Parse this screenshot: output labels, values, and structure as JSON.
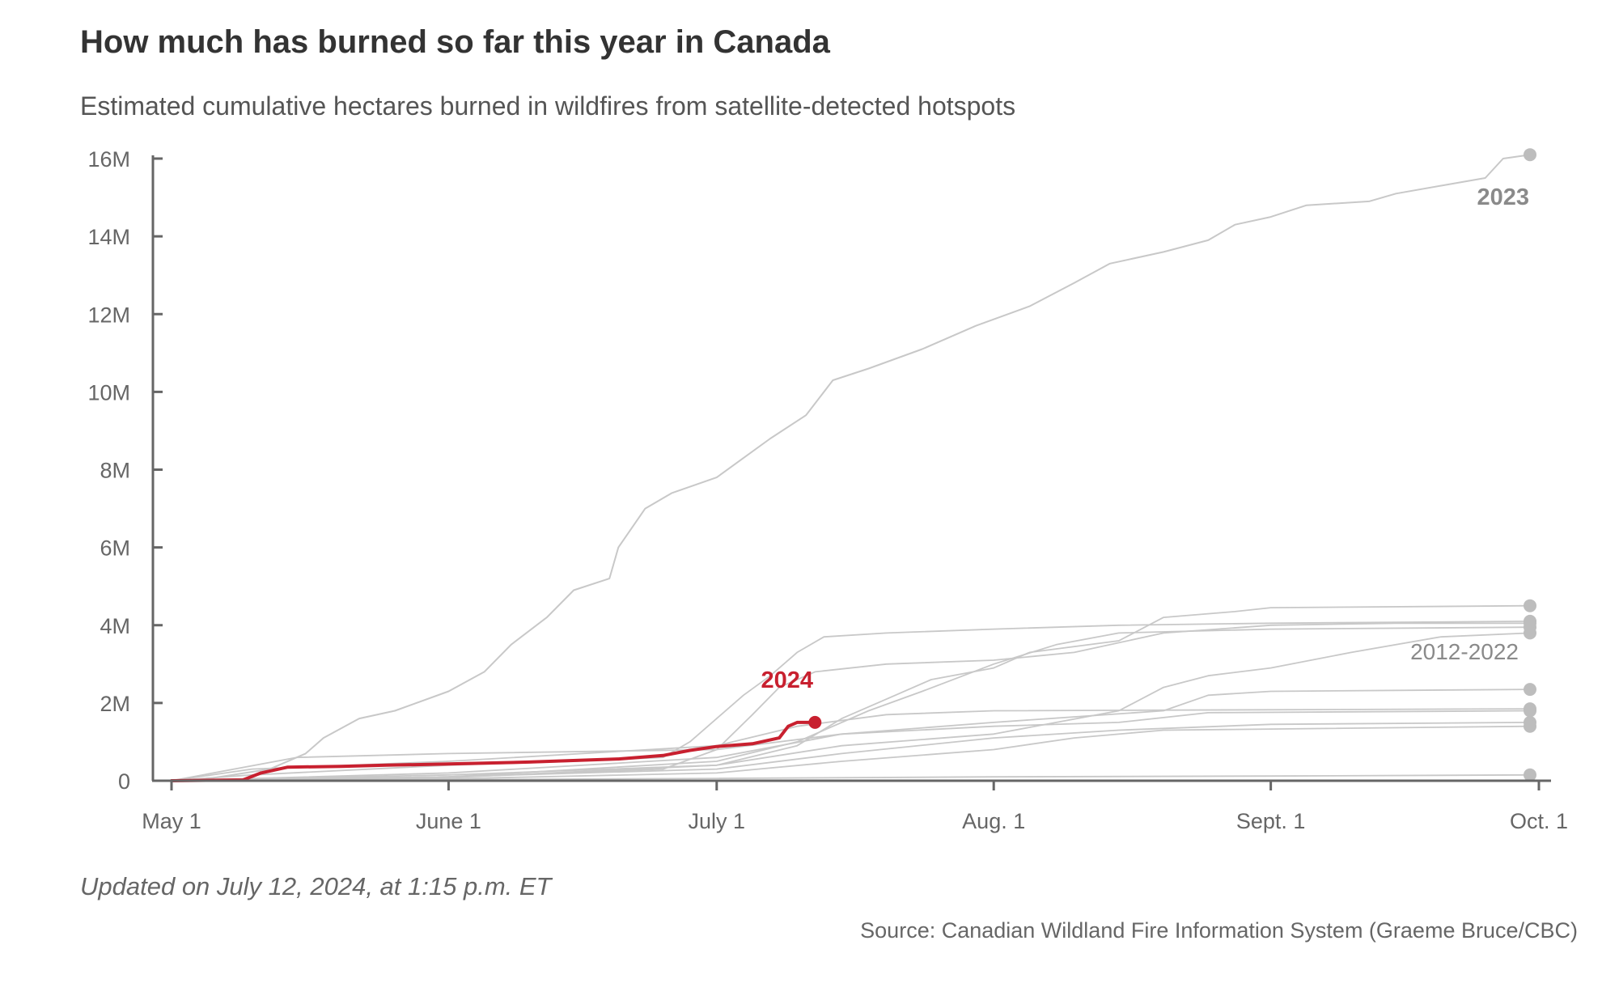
{
  "chart_data": {
    "type": "line",
    "title": "How much has burned so far this year in Canada",
    "subtitle": "Estimated cumulative hectares burned in wildfires from satellite-detected hotspots",
    "xlabel": "",
    "ylabel": "",
    "x_tick_labels": [
      "May 1",
      "June 1",
      "July 1",
      "Aug. 1",
      "Sept. 1",
      "Oct. 1"
    ],
    "y_ticks": [
      0,
      2000000,
      4000000,
      6000000,
      8000000,
      10000000,
      12000000,
      14000000,
      16000000
    ],
    "y_tick_labels": [
      "0",
      "2M",
      "4M",
      "6M",
      "8M",
      "10M",
      "12M",
      "14M",
      "16M"
    ],
    "xlim": [
      "May 1",
      "Oct. 1"
    ],
    "ylim": [
      0,
      16000000
    ],
    "grid": false,
    "annotations": {
      "current_year": "2024",
      "record_year": "2023",
      "historical_range": "2012-2022"
    },
    "colors": {
      "current": "#c8202f",
      "historical": "#c8c8c8",
      "endpoint": "#bdbdbd",
      "axis": "#666666"
    },
    "series": [
      {
        "name": "2024",
        "highlight": true,
        "points": [
          [
            "May 1",
            0
          ],
          [
            "May 9",
            20000
          ],
          [
            "May 11",
            200000
          ],
          [
            "May 14",
            350000
          ],
          [
            "May 20",
            370000
          ],
          [
            "May 25",
            400000
          ],
          [
            "June 1",
            430000
          ],
          [
            "June 10",
            480000
          ],
          [
            "June 20",
            560000
          ],
          [
            "June 25",
            650000
          ],
          [
            "June 28",
            780000
          ],
          [
            "July 1",
            880000
          ],
          [
            "July 5",
            950000
          ],
          [
            "July 8",
            1100000
          ],
          [
            "July 9",
            1400000
          ],
          [
            "July 10",
            1500000
          ],
          [
            "July 12",
            1500000
          ]
        ]
      },
      {
        "name": "2023",
        "points": [
          [
            "May 1",
            0
          ],
          [
            "May 5",
            50000
          ],
          [
            "May 12",
            300000
          ],
          [
            "May 16",
            700000
          ],
          [
            "May 18",
            1100000
          ],
          [
            "May 22",
            1600000
          ],
          [
            "May 26",
            1800000
          ],
          [
            "June 1",
            2300000
          ],
          [
            "June 5",
            2800000
          ],
          [
            "June 8",
            3500000
          ],
          [
            "June 12",
            4200000
          ],
          [
            "June 15",
            4900000
          ],
          [
            "June 19",
            5200000
          ],
          [
            "June 20",
            6000000
          ],
          [
            "June 23",
            7000000
          ],
          [
            "June 26",
            7400000
          ],
          [
            "July 1",
            7800000
          ],
          [
            "July 4",
            8300000
          ],
          [
            "July 7",
            8800000
          ],
          [
            "July 11",
            9400000
          ],
          [
            "July 14",
            10300000
          ],
          [
            "July 18",
            10600000
          ],
          [
            "July 24",
            11100000
          ],
          [
            "July 30",
            11700000
          ],
          [
            "Aug. 5",
            12200000
          ],
          [
            "Aug. 10",
            12800000
          ],
          [
            "Aug. 14",
            13300000
          ],
          [
            "Aug. 20",
            13600000
          ],
          [
            "Aug. 25",
            13900000
          ],
          [
            "Aug. 28",
            14300000
          ],
          [
            "Sept. 1",
            14500000
          ],
          [
            "Sept. 5",
            14800000
          ],
          [
            "Sept. 12",
            14900000
          ],
          [
            "Sept. 15",
            15100000
          ],
          [
            "Sept. 20",
            15300000
          ],
          [
            "Sept. 25",
            15500000
          ],
          [
            "Sept. 27",
            16000000
          ],
          [
            "Sept. 30",
            16100000
          ]
        ]
      },
      {
        "points": [
          [
            "May 1",
            0
          ],
          [
            "May 10",
            150000
          ],
          [
            "June 1",
            400000
          ],
          [
            "June 15",
            500000
          ],
          [
            "June 25",
            600000
          ],
          [
            "June 28",
            1000000
          ],
          [
            "July 1",
            1600000
          ],
          [
            "July 4",
            2200000
          ],
          [
            "July 7",
            2700000
          ],
          [
            "July 10",
            3300000
          ],
          [
            "July 13",
            3700000
          ],
          [
            "July 20",
            3800000
          ],
          [
            "Aug. 1",
            3900000
          ],
          [
            "Aug. 15",
            4000000
          ],
          [
            "Sept. 1",
            4050000
          ],
          [
            "Sept. 30",
            4100000
          ]
        ]
      },
      {
        "points": [
          [
            "May 1",
            0
          ],
          [
            "June 1",
            100000
          ],
          [
            "June 25",
            300000
          ],
          [
            "July 1",
            800000
          ],
          [
            "July 5",
            1700000
          ],
          [
            "July 8",
            2400000
          ],
          [
            "July 12",
            2800000
          ],
          [
            "July 20",
            3000000
          ],
          [
            "Aug. 1",
            3100000
          ],
          [
            "Aug. 10",
            3300000
          ],
          [
            "Aug. 20",
            3800000
          ],
          [
            "Sept. 1",
            4000000
          ],
          [
            "Sept. 15",
            4050000
          ],
          [
            "Sept. 30",
            4050000
          ]
        ]
      },
      {
        "points": [
          [
            "May 1",
            0
          ],
          [
            "June 1",
            80000
          ],
          [
            "July 1",
            400000
          ],
          [
            "July 10",
            900000
          ],
          [
            "July 15",
            1600000
          ],
          [
            "July 20",
            2100000
          ],
          [
            "July 25",
            2600000
          ],
          [
            "Aug. 1",
            2900000
          ],
          [
            "Aug. 5",
            3300000
          ],
          [
            "Aug. 15",
            3600000
          ],
          [
            "Aug. 20",
            4200000
          ],
          [
            "Aug. 28",
            4350000
          ],
          [
            "Sept. 1",
            4450000
          ],
          [
            "Sept. 30",
            4500000
          ]
        ]
      },
      {
        "points": [
          [
            "May 1",
            0
          ],
          [
            "June 1",
            100000
          ],
          [
            "July 1",
            500000
          ],
          [
            "July 10",
            1000000
          ],
          [
            "July 18",
            1800000
          ],
          [
            "July 24",
            2300000
          ],
          [
            "Aug. 1",
            3000000
          ],
          [
            "Aug. 8",
            3500000
          ],
          [
            "Aug. 15",
            3800000
          ],
          [
            "Sept. 1",
            3900000
          ],
          [
            "Sept. 30",
            3950000
          ]
        ]
      },
      {
        "points": [
          [
            "May 1",
            0
          ],
          [
            "June 1",
            150000
          ],
          [
            "July 1",
            400000
          ],
          [
            "July 15",
            900000
          ],
          [
            "Aug. 1",
            1200000
          ],
          [
            "Aug. 15",
            1800000
          ],
          [
            "Aug. 20",
            2400000
          ],
          [
            "Aug. 25",
            2700000
          ],
          [
            "Sept. 1",
            2900000
          ],
          [
            "Sept. 10",
            3300000
          ],
          [
            "Sept. 20",
            3700000
          ],
          [
            "Sept. 30",
            3800000
          ]
        ]
      },
      {
        "points": [
          [
            "May 1",
            0
          ],
          [
            "May 15",
            600000
          ],
          [
            "June 1",
            700000
          ],
          [
            "July 1",
            800000
          ],
          [
            "July 15",
            1200000
          ],
          [
            "Aug. 1",
            1500000
          ],
          [
            "Aug. 20",
            1800000
          ],
          [
            "Aug. 25",
            2200000
          ],
          [
            "Sept. 1",
            2300000
          ],
          [
            "Sept. 30",
            2350000
          ]
        ]
      },
      {
        "points": [
          [
            "May 1",
            0
          ],
          [
            "May 10",
            300000
          ],
          [
            "June 1",
            500000
          ],
          [
            "July 1",
            900000
          ],
          [
            "July 10",
            1400000
          ],
          [
            "July 20",
            1700000
          ],
          [
            "Aug. 1",
            1800000
          ],
          [
            "Sept. 30",
            1850000
          ]
        ]
      },
      {
        "points": [
          [
            "May 1",
            0
          ],
          [
            "June 1",
            200000
          ],
          [
            "July 1",
            600000
          ],
          [
            "July 15",
            1200000
          ],
          [
            "Aug. 1",
            1400000
          ],
          [
            "Aug. 15",
            1500000
          ],
          [
            "Aug. 25",
            1750000
          ],
          [
            "Sept. 30",
            1800000
          ]
        ]
      },
      {
        "points": [
          [
            "May 1",
            0
          ],
          [
            "June 1",
            100000
          ],
          [
            "July 1",
            300000
          ],
          [
            "July 15",
            700000
          ],
          [
            "Aug. 1",
            1100000
          ],
          [
            "Aug. 15",
            1300000
          ],
          [
            "Sept. 1",
            1450000
          ],
          [
            "Sept. 30",
            1500000
          ]
        ]
      },
      {
        "points": [
          [
            "May 1",
            0
          ],
          [
            "June 1",
            50000
          ],
          [
            "July 1",
            200000
          ],
          [
            "July 15",
            500000
          ],
          [
            "Aug. 1",
            800000
          ],
          [
            "Aug. 10",
            1100000
          ],
          [
            "Aug. 20",
            1300000
          ],
          [
            "Sept. 30",
            1400000
          ]
        ]
      },
      {
        "points": [
          [
            "May 1",
            0
          ],
          [
            "June 1",
            30000
          ],
          [
            "July 1",
            60000
          ],
          [
            "Aug. 1",
            100000
          ],
          [
            "Sept. 1",
            120000
          ],
          [
            "Sept. 30",
            150000
          ]
        ]
      }
    ]
  },
  "notes": {
    "updated": "Updated on July 12, 2024, at 1:15 p.m. ET",
    "source": "Source: Canadian Wildland Fire Information System (Graeme Bruce/CBC)"
  }
}
